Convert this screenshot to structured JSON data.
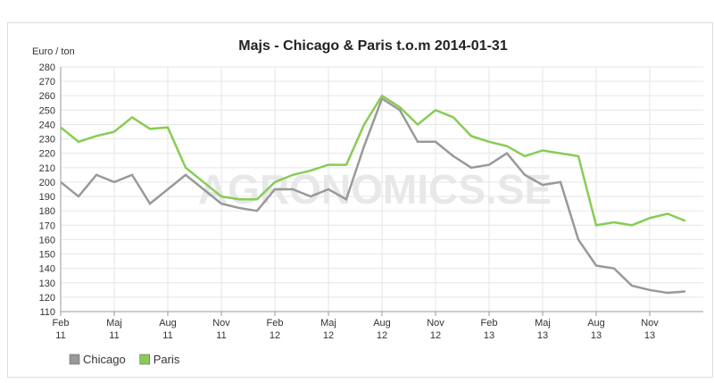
{
  "chart_data": {
    "type": "line",
    "title": "Majs - Chicago & Paris t.o.m 2014-01-31",
    "y_label": "Euro / ton",
    "watermark": "AGRONOMICS.SE",
    "x": [
      "2011-02",
      "2011-03",
      "2011-04",
      "2011-05",
      "2011-06",
      "2011-07",
      "2011-08",
      "2011-09",
      "2011-10",
      "2011-11",
      "2011-12",
      "2012-01",
      "2012-02",
      "2012-03",
      "2012-04",
      "2012-05",
      "2012-06",
      "2012-07",
      "2012-08",
      "2012-09",
      "2012-10",
      "2012-11",
      "2012-12",
      "2013-01",
      "2013-02",
      "2013-03",
      "2013-04",
      "2013-05",
      "2013-06",
      "2013-07",
      "2013-08",
      "2013-09",
      "2013-10",
      "2013-11",
      "2013-12",
      "2014-01"
    ],
    "series": [
      {
        "name": "Chicago",
        "color": "#999999",
        "values": [
          200,
          190,
          205,
          200,
          205,
          185,
          195,
          205,
          195,
          185,
          182,
          180,
          195,
          195,
          190,
          195,
          188,
          225,
          258,
          250,
          228,
          228,
          218,
          210,
          212,
          220,
          205,
          198,
          200,
          160,
          142,
          140,
          128,
          125,
          123,
          124
        ]
      },
      {
        "name": "Paris",
        "color": "#88cc55",
        "values": [
          238,
          228,
          232,
          235,
          245,
          237,
          238,
          210,
          200,
          190,
          188,
          188,
          200,
          205,
          208,
          212,
          212,
          240,
          260,
          252,
          240,
          250,
          245,
          232,
          228,
          225,
          218,
          222,
          220,
          218,
          170,
          172,
          170,
          175,
          178,
          173
        ]
      }
    ],
    "ylim": [
      110,
      280
    ],
    "yticks": [
      110,
      120,
      130,
      140,
      150,
      160,
      170,
      180,
      190,
      200,
      210,
      220,
      230,
      240,
      250,
      260,
      270,
      280
    ],
    "xticks": [
      {
        "value": "2011-02",
        "label": [
          "Feb",
          "11"
        ]
      },
      {
        "value": "2011-05",
        "label": [
          "Maj",
          "11"
        ]
      },
      {
        "value": "2011-08",
        "label": [
          "Aug",
          "11"
        ]
      },
      {
        "value": "2011-11",
        "label": [
          "Nov",
          "11"
        ]
      },
      {
        "value": "2012-02",
        "label": [
          "Feb",
          "12"
        ]
      },
      {
        "value": "2012-05",
        "label": [
          "Maj",
          "12"
        ]
      },
      {
        "value": "2012-08",
        "label": [
          "Aug",
          "12"
        ]
      },
      {
        "value": "2012-11",
        "label": [
          "Nov",
          "12"
        ]
      },
      {
        "value": "2013-02",
        "label": [
          "Feb",
          "13"
        ]
      },
      {
        "value": "2013-05",
        "label": [
          "Maj",
          "13"
        ]
      },
      {
        "value": "2013-08",
        "label": [
          "Aug",
          "13"
        ]
      },
      {
        "value": "2013-11",
        "label": [
          "Nov",
          "13"
        ]
      }
    ],
    "grid": true,
    "legend": "bottom-left"
  }
}
